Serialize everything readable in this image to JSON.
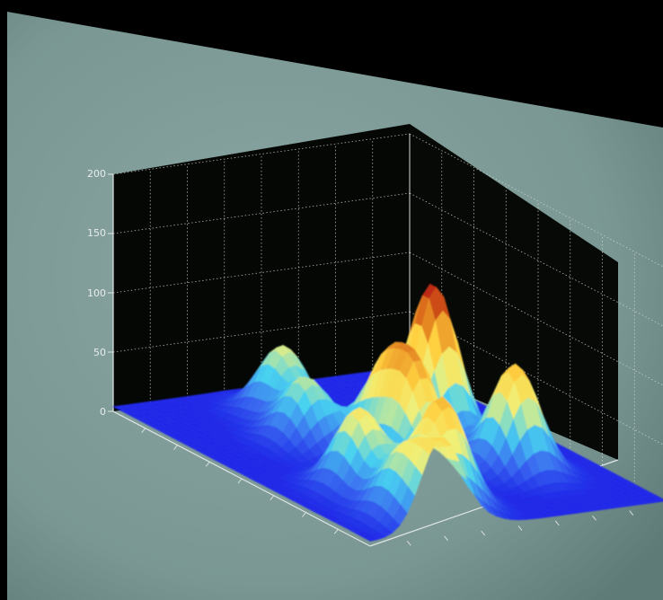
{
  "chart_data": {
    "type": "surface",
    "title": "",
    "xlabel": "",
    "ylabel": "",
    "zlabel": "",
    "zlim": [
      0,
      200
    ],
    "z_ticks": [
      "0",
      "50",
      "100",
      "150",
      "200"
    ],
    "grid": true,
    "colormap": [
      "#1a1ae6",
      "#3a6cf0",
      "#48d2f0",
      "#f0f078",
      "#ffd040",
      "#e07a1e",
      "#b81e10"
    ],
    "peaks": [
      {
        "x": 3.5,
        "y": 5.6,
        "z": 130
      },
      {
        "x": 5.6,
        "y": 6.0,
        "z": 90
      },
      {
        "x": 1.6,
        "y": 3.2,
        "z": 60
      },
      {
        "x": 4.2,
        "y": 3.8,
        "z": 80
      },
      {
        "x": 5.2,
        "y": 3.7,
        "z": 85
      },
      {
        "x": 6.8,
        "y": 3.0,
        "z": 90
      },
      {
        "x": 5.6,
        "y": 1.8,
        "z": 70
      },
      {
        "x": 3.0,
        "y": 2.6,
        "z": 55
      },
      {
        "x": 7.2,
        "y": 1.6,
        "z": 55
      },
      {
        "x": 8.2,
        "y": 2.0,
        "z": 70
      }
    ]
  },
  "colors": {
    "screen": "#7f9b98",
    "backdrop": "#000000",
    "walls": "#060806",
    "grid": "#d8dcd8"
  }
}
